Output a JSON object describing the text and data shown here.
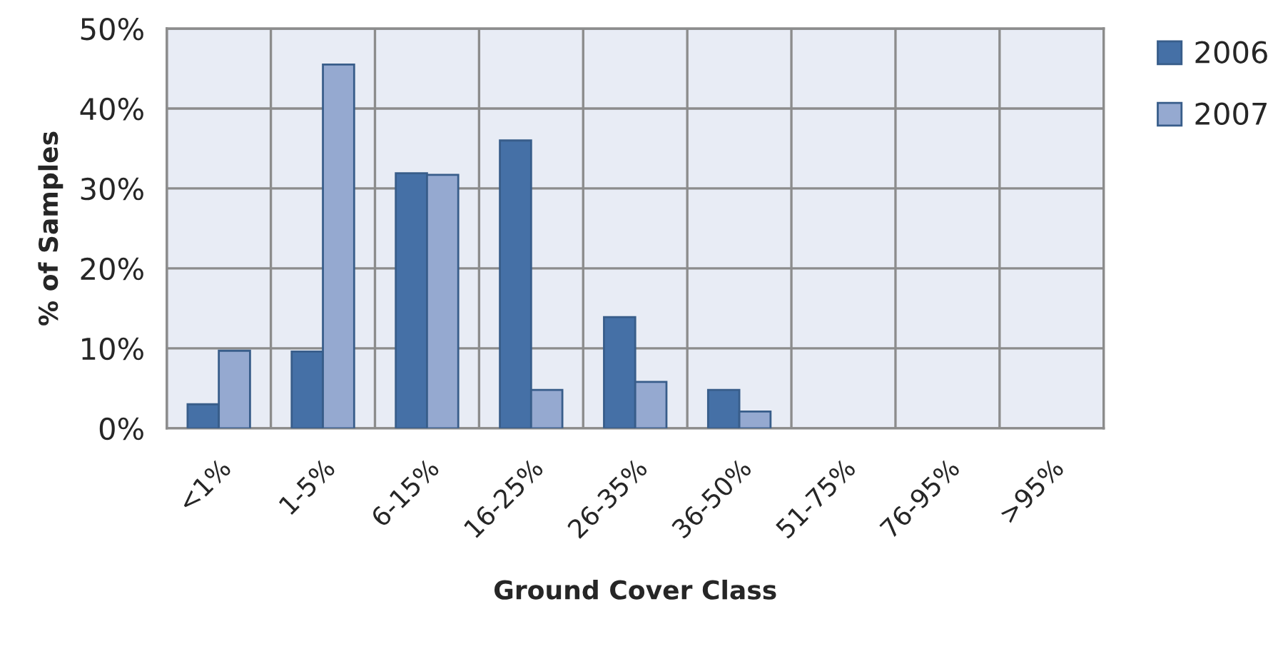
{
  "chart_data": {
    "type": "bar",
    "ylabel": "% of Samples",
    "xlabel": "Ground Cover Class",
    "categories": [
      "<1%",
      "1-5%",
      "6-15%",
      "16-25%",
      "26-35%",
      "36-50%",
      "51-75%",
      "76-95%",
      ">95%"
    ],
    "series": [
      {
        "name": "2006",
        "color": "#4570a6",
        "values": [
          3,
          9.6,
          31.9,
          36,
          13.9,
          4.8,
          0,
          0,
          0
        ]
      },
      {
        "name": "2007",
        "color": "#95a9d0",
        "values": [
          9.7,
          45.5,
          31.7,
          4.8,
          5.8,
          2.1,
          0,
          0,
          0
        ]
      }
    ],
    "ylim": [
      0,
      50
    ],
    "yticks": [
      {
        "value": 0,
        "label": "0%"
      },
      {
        "value": 10,
        "label": "10%"
      },
      {
        "value": 20,
        "label": "20%"
      },
      {
        "value": 30,
        "label": "30%"
      },
      {
        "value": 40,
        "label": "40%"
      },
      {
        "value": 50,
        "label": "50%"
      }
    ],
    "grid": true,
    "legend": "top right"
  }
}
